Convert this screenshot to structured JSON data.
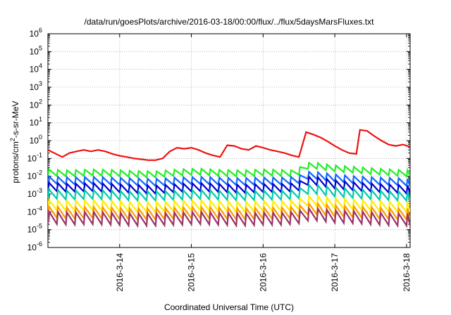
{
  "chart_data": {
    "type": "line",
    "title": "/data/run/goesPlots/archive/2016-03-18/00:00/flux/../flux/5daysMarsFluxes.txt",
    "xlabel": "Coordinated Universal Time (UTC)",
    "ylabel_parts": [
      "protons/cm",
      "2",
      "-s-sr-MeV"
    ],
    "y_scale": "log",
    "ylim": [
      1e-06,
      1000000.0
    ],
    "y_ticks": [
      {
        "base": "10",
        "exp": "-6",
        "value": -6
      },
      {
        "base": "10",
        "exp": "-5",
        "value": -5
      },
      {
        "base": "10",
        "exp": "-4",
        "value": -4
      },
      {
        "base": "10",
        "exp": "-3",
        "value": -3
      },
      {
        "base": "10",
        "exp": "-2",
        "value": -2
      },
      {
        "base": "10",
        "exp": "-1",
        "value": -1
      },
      {
        "base": "10",
        "exp": "0",
        "value": 0
      },
      {
        "base": "10",
        "exp": "1",
        "value": 1
      },
      {
        "base": "10",
        "exp": "2",
        "value": 2
      },
      {
        "base": "10",
        "exp": "3",
        "value": 3
      },
      {
        "base": "10",
        "exp": "4",
        "value": 4
      },
      {
        "base": "10",
        "exp": "5",
        "value": 5
      },
      {
        "base": "10",
        "exp": "6",
        "value": 6
      }
    ],
    "xlim_days": [
      13.0,
      18.05
    ],
    "x_ticks": [
      {
        "label": "2016-3-14",
        "day": 14
      },
      {
        "label": "2016-3-15",
        "day": 15
      },
      {
        "label": "2016-3-16",
        "day": 16
      },
      {
        "label": "2016-3-17",
        "day": 17
      },
      {
        "label": "2016-3-18",
        "day": 18
      }
    ],
    "grid": true,
    "sawtooth_period_days": 0.125,
    "series": [
      {
        "color": "#ee1111",
        "points": [
          [
            13.0,
            0.3
          ],
          [
            13.2,
            0.12
          ],
          [
            13.3,
            0.2
          ],
          [
            13.4,
            0.25
          ],
          [
            13.5,
            0.3
          ],
          [
            13.6,
            0.25
          ],
          [
            13.7,
            0.3
          ],
          [
            13.8,
            0.25
          ],
          [
            13.9,
            0.18
          ],
          [
            14.0,
            0.14
          ],
          [
            14.1,
            0.12
          ],
          [
            14.2,
            0.1
          ],
          [
            14.3,
            0.09
          ],
          [
            14.4,
            0.08
          ],
          [
            14.5,
            0.08
          ],
          [
            14.6,
            0.1
          ],
          [
            14.7,
            0.25
          ],
          [
            14.8,
            0.4
          ],
          [
            14.9,
            0.35
          ],
          [
            15.0,
            0.4
          ],
          [
            15.1,
            0.3
          ],
          [
            15.2,
            0.2
          ],
          [
            15.3,
            0.15
          ],
          [
            15.4,
            0.12
          ],
          [
            15.5,
            0.55
          ],
          [
            15.6,
            0.5
          ],
          [
            15.7,
            0.35
          ],
          [
            15.8,
            0.3
          ],
          [
            15.9,
            0.5
          ],
          [
            16.0,
            0.4
          ],
          [
            16.1,
            0.3
          ],
          [
            16.2,
            0.25
          ],
          [
            16.3,
            0.2
          ],
          [
            16.4,
            0.15
          ],
          [
            16.5,
            0.12
          ],
          [
            16.6,
            3.0
          ],
          [
            16.7,
            2.2
          ],
          [
            16.8,
            1.5
          ],
          [
            16.9,
            0.9
          ],
          [
            17.0,
            0.5
          ],
          [
            17.1,
            0.3
          ],
          [
            17.2,
            0.2
          ],
          [
            17.3,
            0.18
          ],
          [
            17.35,
            4.0
          ],
          [
            17.45,
            3.5
          ],
          [
            17.55,
            1.8
          ],
          [
            17.65,
            1.0
          ],
          [
            17.75,
            0.6
          ],
          [
            17.85,
            0.5
          ],
          [
            17.95,
            0.6
          ],
          [
            18.05,
            0.45
          ]
        ]
      },
      {
        "color": "#22ee22",
        "points": [
          [
            13.0,
            0.018
          ],
          [
            13.3,
            0.016
          ],
          [
            13.6,
            0.018
          ],
          [
            13.9,
            0.017
          ],
          [
            14.2,
            0.015
          ],
          [
            14.5,
            0.014
          ],
          [
            14.8,
            0.018
          ],
          [
            15.1,
            0.02
          ],
          [
            15.4,
            0.017
          ],
          [
            15.7,
            0.016
          ],
          [
            16.0,
            0.018
          ],
          [
            16.3,
            0.017
          ],
          [
            16.4,
            0.016
          ],
          [
            16.5,
            0.02
          ],
          [
            16.55,
            0.04
          ],
          [
            16.7,
            0.045
          ],
          [
            17.0,
            0.03
          ],
          [
            17.3,
            0.025
          ],
          [
            17.6,
            0.02
          ],
          [
            17.9,
            0.017
          ],
          [
            18.05,
            0.016
          ]
        ]
      },
      {
        "color": "#1166ff",
        "points": [
          [
            13.0,
            0.007
          ],
          [
            13.3,
            0.006
          ],
          [
            13.6,
            0.0065
          ],
          [
            13.9,
            0.006
          ],
          [
            14.2,
            0.0055
          ],
          [
            14.5,
            0.005
          ],
          [
            14.8,
            0.006
          ],
          [
            15.1,
            0.0065
          ],
          [
            15.4,
            0.006
          ],
          [
            15.7,
            0.0055
          ],
          [
            16.0,
            0.006
          ],
          [
            16.3,
            0.006
          ],
          [
            16.5,
            0.007
          ],
          [
            16.55,
            0.012
          ],
          [
            16.7,
            0.013
          ],
          [
            17.0,
            0.009
          ],
          [
            17.3,
            0.007
          ],
          [
            17.6,
            0.006
          ],
          [
            17.9,
            0.0055
          ],
          [
            18.05,
            0.005
          ]
        ]
      },
      {
        "color": "#0000cc",
        "points": [
          [
            13.0,
            0.003
          ],
          [
            13.3,
            0.0025
          ],
          [
            13.6,
            0.0028
          ],
          [
            13.9,
            0.0025
          ],
          [
            14.2,
            0.0022
          ],
          [
            14.5,
            0.002
          ],
          [
            14.8,
            0.0025
          ],
          [
            15.1,
            0.0028
          ],
          [
            15.4,
            0.0025
          ],
          [
            15.7,
            0.0022
          ],
          [
            16.0,
            0.0025
          ],
          [
            16.3,
            0.0025
          ],
          [
            16.5,
            0.003
          ],
          [
            16.55,
            0.006
          ],
          [
            16.7,
            0.0065
          ],
          [
            17.0,
            0.004
          ],
          [
            17.3,
            0.003
          ],
          [
            17.6,
            0.0025
          ],
          [
            17.9,
            0.0022
          ],
          [
            18.05,
            0.002
          ]
        ]
      },
      {
        "color": "#00ccaa",
        "points": [
          [
            13.0,
            0.0012
          ],
          [
            13.3,
            0.001
          ],
          [
            13.6,
            0.0011
          ],
          [
            13.9,
            0.001
          ],
          [
            14.2,
            0.0009
          ],
          [
            14.5,
            0.0009
          ],
          [
            14.8,
            0.001
          ],
          [
            15.1,
            0.0011
          ],
          [
            15.4,
            0.001
          ],
          [
            15.7,
            0.0009
          ],
          [
            16.0,
            0.001
          ],
          [
            16.3,
            0.001
          ],
          [
            16.5,
            0.0012
          ],
          [
            16.55,
            0.002
          ],
          [
            16.7,
            0.0022
          ],
          [
            17.0,
            0.0015
          ],
          [
            17.3,
            0.0012
          ],
          [
            17.6,
            0.001
          ],
          [
            17.9,
            0.0009
          ],
          [
            18.05,
            0.0009
          ]
        ]
      },
      {
        "color": "#ffee00",
        "points": [
          [
            13.0,
            0.0003
          ],
          [
            13.3,
            0.00025
          ],
          [
            13.6,
            0.00028
          ],
          [
            13.9,
            0.00025
          ],
          [
            14.2,
            0.00022
          ],
          [
            14.5,
            0.00022
          ],
          [
            14.8,
            0.00025
          ],
          [
            15.1,
            0.00028
          ],
          [
            15.4,
            0.00025
          ],
          [
            15.7,
            0.00022
          ],
          [
            16.0,
            0.00025
          ],
          [
            16.3,
            0.00025
          ],
          [
            16.5,
            0.0003
          ],
          [
            16.55,
            0.00045
          ],
          [
            16.7,
            0.0005
          ],
          [
            17.0,
            0.00035
          ],
          [
            17.3,
            0.0003
          ],
          [
            17.6,
            0.00025
          ],
          [
            17.9,
            0.00022
          ],
          [
            18.05,
            0.00022
          ]
        ]
      },
      {
        "color": "#ff9900",
        "points": [
          [
            13.0,
            0.00012
          ],
          [
            13.3,
            0.0001
          ],
          [
            13.6,
            0.00011
          ],
          [
            13.9,
            0.0001
          ],
          [
            14.2,
            9e-05
          ],
          [
            14.5,
            9e-05
          ],
          [
            14.8,
            0.0001
          ],
          [
            15.1,
            0.00011
          ],
          [
            15.4,
            0.0001
          ],
          [
            15.7,
            9e-05
          ],
          [
            16.0,
            0.0001
          ],
          [
            16.3,
            0.0001
          ],
          [
            16.5,
            0.00012
          ],
          [
            16.55,
            0.00016
          ],
          [
            16.7,
            0.00018
          ],
          [
            17.0,
            0.00013
          ],
          [
            17.3,
            0.00012
          ],
          [
            17.6,
            0.0001
          ],
          [
            17.9,
            9e-05
          ],
          [
            18.05,
            9e-05
          ]
        ]
      },
      {
        "color": "#993366",
        "points": [
          [
            13.0,
            6e-05
          ],
          [
            13.3,
            5e-05
          ],
          [
            13.6,
            5.5e-05
          ],
          [
            13.9,
            5e-05
          ],
          [
            14.2,
            4.5e-05
          ],
          [
            14.5,
            4.5e-05
          ],
          [
            14.8,
            5e-05
          ],
          [
            15.1,
            5.5e-05
          ],
          [
            15.4,
            5e-05
          ],
          [
            15.7,
            4.5e-05
          ],
          [
            16.0,
            5e-05
          ],
          [
            16.3,
            5e-05
          ],
          [
            16.5,
            6e-05
          ],
          [
            16.55,
            8e-05
          ],
          [
            16.7,
            9e-05
          ],
          [
            17.0,
            6.5e-05
          ],
          [
            17.3,
            6e-05
          ],
          [
            17.6,
            5e-05
          ],
          [
            17.9,
            4.5e-05
          ],
          [
            18.05,
            4.5e-05
          ]
        ]
      }
    ]
  }
}
